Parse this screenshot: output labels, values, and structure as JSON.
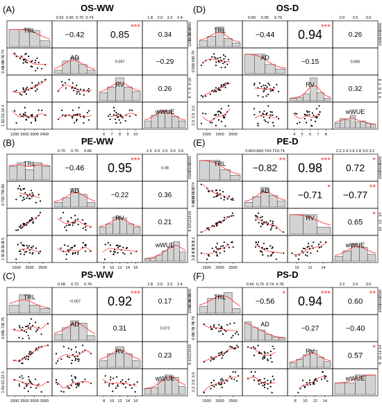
{
  "variables": [
    "TRL",
    "AD",
    "RV",
    "wWUE"
  ],
  "colors": {
    "hist_fill": "#d3d3d3",
    "curve": "#ff3333",
    "point": "#000000",
    "star": "#ff3333",
    "frame": "#000000"
  },
  "chart_data": [
    {
      "type": "pairs",
      "panel_label": "(A)",
      "title": "OS-WW",
      "correlations": [
        {
          "pair": [
            "TRL",
            "AD"
          ],
          "r": "−0.42",
          "stars": ""
        },
        {
          "pair": [
            "TRL",
            "RV"
          ],
          "r": "0.85",
          "stars": "***"
        },
        {
          "pair": [
            "TRL",
            "wWUE"
          ],
          "r": "0.34",
          "stars": ""
        },
        {
          "pair": [
            "AD",
            "RV"
          ],
          "r": "0.097",
          "stars": ""
        },
        {
          "pair": [
            "AD",
            "wWUE"
          ],
          "r": "−0.29",
          "stars": ""
        },
        {
          "pair": [
            "RV",
            "wWUE"
          ],
          "r": "0.26",
          "stars": ""
        }
      ],
      "ticks": {
        "TRL": [
          "1200",
          "1600",
          "2000",
          "2400"
        ],
        "AD": [
          "0.62",
          "0.66",
          "0.70",
          "0.74"
        ],
        "RV": [
          "6",
          "7",
          "8",
          "9",
          "10"
        ],
        "wWUE": [
          "1.8",
          "2.0",
          "2.2",
          "2.4"
        ]
      },
      "ranges": {
        "TRL": [
          1050,
          2450
        ],
        "AD": [
          0.59,
          0.77
        ],
        "RV": [
          5.5,
          10.8
        ],
        "wWUE": [
          1.65,
          2.5
        ]
      },
      "histograms": {
        "TRL": [
          0.75,
          0.75,
          0.7,
          0.25
        ],
        "AD": [
          0.15,
          0.55,
          0.7,
          0.4,
          0.15
        ],
        "RV": [
          0.35,
          0.6,
          1.0,
          0.6,
          0.4
        ],
        "wWUE": [
          0.3,
          0.55,
          0.75,
          0.75,
          0.5,
          0.3
        ]
      }
    },
    {
      "type": "pairs",
      "panel_label": "(D)",
      "title": "OS-D",
      "correlations": [
        {
          "pair": [
            "TRL",
            "AD"
          ],
          "r": "−0.44",
          "stars": ""
        },
        {
          "pair": [
            "TRL",
            "RV"
          ],
          "r": "0.94",
          "stars": "***"
        },
        {
          "pair": [
            "TRL",
            "wWUE"
          ],
          "r": "0.26",
          "stars": ""
        },
        {
          "pair": [
            "AD",
            "RV"
          ],
          "r": "−0.15",
          "stars": ""
        },
        {
          "pair": [
            "AD",
            "wWUE"
          ],
          "r": "0.066",
          "stars": ""
        },
        {
          "pair": [
            "RV",
            "wWUE"
          ],
          "r": "0.32",
          "stars": ""
        }
      ],
      "ticks": {
        "TRL": [
          "1000",
          "1500",
          "2000"
        ],
        "AD": [
          "0.60",
          "0.65",
          "0.70"
        ],
        "RV": [
          "4",
          "5",
          "6",
          "7",
          "8"
        ],
        "wWUE": [
          "2.0",
          "2.5",
          "3.0"
        ]
      },
      "ranges": {
        "TRL": [
          850,
          2300
        ],
        "AD": [
          0.56,
          0.73
        ],
        "RV": [
          4,
          8.3
        ],
        "wWUE": [
          1.75,
          3.2
        ]
      },
      "histograms": {
        "TRL": [
          0.25,
          0.45,
          0.85,
          0.35,
          0.15
        ],
        "AD": [
          0.85,
          0.85,
          0.4,
          0.2
        ],
        "RV": [
          0.1,
          0.15,
          0.3,
          1.0,
          0.35,
          0.1
        ],
        "wWUE": [
          0.2,
          0.4,
          0.35,
          0.55,
          0.25,
          0.3,
          0.2,
          0.15
        ]
      }
    },
    {
      "type": "pairs",
      "panel_label": "(B)",
      "title": "PE-WW",
      "correlations": [
        {
          "pair": [
            "TRL",
            "AD"
          ],
          "r": "−0.46",
          "stars": ""
        },
        {
          "pair": [
            "TRL",
            "RV"
          ],
          "r": "0.95",
          "stars": "***"
        },
        {
          "pair": [
            "TRL",
            "wWUE"
          ],
          "r": "0.08",
          "stars": ""
        },
        {
          "pair": [
            "AD",
            "RV"
          ],
          "r": "−0.22",
          "stars": ""
        },
        {
          "pair": [
            "AD",
            "wWUE"
          ],
          "r": "0.36",
          "stars": ""
        },
        {
          "pair": [
            "RV",
            "wWUE"
          ],
          "r": "0.21",
          "stars": ""
        }
      ],
      "ticks": {
        "TRL": [
          "1500",
          "2500",
          "3500"
        ],
        "AD": [
          "0.70",
          "0.75",
          "0.80"
        ],
        "RV": [
          "8",
          "10",
          "12",
          "14",
          "16"
        ],
        "wWUE": [
          "1.5",
          "2.0",
          "2.5",
          "3.0",
          "3.5"
        ]
      },
      "ranges": {
        "TRL": [
          1100,
          3900
        ],
        "AD": [
          0.66,
          0.84
        ],
        "RV": [
          7,
          17
        ],
        "wWUE": [
          1.4,
          3.6
        ]
      },
      "histograms": {
        "TRL": [
          0.6,
          0.75,
          0.45,
          0.75,
          0.6
        ],
        "AD": [
          0.2,
          0.4,
          0.8,
          0.55,
          0.2
        ],
        "RV": [
          0.3,
          0.45,
          0.75,
          0.7,
          0.45,
          0.3
        ],
        "wWUE": [
          0.1,
          0.15,
          0.25,
          0.45,
          0.6,
          0.85,
          0.4
        ]
      }
    },
    {
      "type": "pairs",
      "panel_label": "(E)",
      "title": "PE-D",
      "correlations": [
        {
          "pair": [
            "TRL",
            "AD"
          ],
          "r": "−0.82",
          "stars": "**"
        },
        {
          "pair": [
            "TRL",
            "RV"
          ],
          "r": "0.98",
          "stars": "***"
        },
        {
          "pair": [
            "TRL",
            "wWUE"
          ],
          "r": "0.72",
          "stars": "*"
        },
        {
          "pair": [
            "AD",
            "RV"
          ],
          "r": "−0.71",
          "stars": "*"
        },
        {
          "pair": [
            "AD",
            "wWUE"
          ],
          "r": "−0.77",
          "stars": "**"
        },
        {
          "pair": [
            "RV",
            "wWUE"
          ],
          "r": "0.65",
          "stars": "*"
        }
      ],
      "ticks": {
        "TRL": [
          "1500",
          "2500",
          "3500"
        ],
        "AD": [
          "0.66",
          "0.68",
          "0.70",
          "0.72",
          "0.74"
        ],
        "RV": [
          "10",
          "12",
          "14"
        ],
        "wWUE": [
          "2.2",
          "2.4",
          "2.6",
          "2.8",
          "3.0",
          "3.2"
        ]
      },
      "ranges": {
        "TRL": [
          1100,
          4100
        ],
        "AD": [
          0.645,
          0.755
        ],
        "RV": [
          8.5,
          15.5
        ],
        "wWUE": [
          2.05,
          3.25
        ]
      },
      "histograms": {
        "TRL": [
          0.85,
          0.85,
          0.45,
          0.2
        ],
        "AD": [
          0.2,
          0.45,
          0.85,
          0.5,
          0.25
        ],
        "RV": [
          0.85,
          0.85,
          0.3
        ],
        "wWUE": [
          0.2,
          0.45,
          0.75,
          0.6,
          0.3
        ]
      }
    },
    {
      "type": "pairs",
      "panel_label": "(C)",
      "title": "PS-WW",
      "correlations": [
        {
          "pair": [
            "TRL",
            "AD"
          ],
          "r": "−0.007",
          "stars": ""
        },
        {
          "pair": [
            "TRL",
            "RV"
          ],
          "r": "0.92",
          "stars": "***"
        },
        {
          "pair": [
            "TRL",
            "wWUE"
          ],
          "r": "0.17",
          "stars": ""
        },
        {
          "pair": [
            "AD",
            "RV"
          ],
          "r": "0.31",
          "stars": ""
        },
        {
          "pair": [
            "AD",
            "wWUE"
          ],
          "r": "0.072",
          "stars": ""
        },
        {
          "pair": [
            "RV",
            "wWUE"
          ],
          "r": "0.23",
          "stars": ""
        }
      ],
      "ticks": {
        "TRL": [
          "2000",
          "2500",
          "3000",
          "3500"
        ],
        "AD": [
          "0.68",
          "0.72",
          "0.76"
        ],
        "RV": [
          "8",
          "10",
          "12",
          "14",
          "16"
        ],
        "wWUE": [
          "1.8",
          "2.0",
          "2.2",
          "2.4"
        ]
      },
      "ranges": {
        "TRL": [
          1500,
          3800
        ],
        "AD": [
          0.65,
          0.79
        ],
        "RV": [
          7.5,
          17
        ],
        "wWUE": [
          1.7,
          2.5
        ]
      },
      "histograms": {
        "TRL": [
          0.35,
          0.8,
          0.35,
          0.2
        ],
        "AD": [
          0.25,
          0.55,
          0.85,
          0.75,
          0.2
        ],
        "RV": [
          0.3,
          0.6,
          0.9,
          0.6,
          0.3
        ],
        "wWUE": [
          0.25,
          0.3,
          0.6,
          0.85,
          0.75,
          0.35
        ]
      }
    },
    {
      "type": "pairs",
      "panel_label": "(F)",
      "title": "PS-D",
      "correlations": [
        {
          "pair": [
            "TRL",
            "AD"
          ],
          "r": "−0.56",
          "stars": "*"
        },
        {
          "pair": [
            "TRL",
            "RV"
          ],
          "r": "0.94",
          "stars": "***"
        },
        {
          "pair": [
            "TRL",
            "wWUE"
          ],
          "r": "0.60",
          "stars": "**"
        },
        {
          "pair": [
            "AD",
            "RV"
          ],
          "r": "−0.27",
          "stars": ""
        },
        {
          "pair": [
            "AD",
            "wWUE"
          ],
          "r": "−0.40",
          "stars": ""
        },
        {
          "pair": [
            "RV",
            "wWUE"
          ],
          "r": "0.57",
          "stars": "*"
        }
      ],
      "ticks": {
        "TRL": [
          "1500",
          "2000",
          "2500"
        ],
        "AD": [
          "0.66",
          "0.70",
          "0.74",
          "0.78"
        ],
        "RV": [
          "8",
          "10",
          "12",
          "14"
        ],
        "wWUE": [
          "2.2",
          "2.6",
          "3.0"
        ]
      },
      "ranges": {
        "TRL": [
          1100,
          2800
        ],
        "AD": [
          0.64,
          0.8
        ],
        "RV": [
          7,
          14.5
        ],
        "wWUE": [
          1.7,
          3.05
        ]
      },
      "histograms": {
        "TRL": [
          0.3,
          0.65,
          0.75,
          0.9,
          0.2
        ],
        "AD": [
          0.8,
          0.55,
          0.45,
          0.25,
          0.15,
          0.1
        ],
        "RV": [
          0.2,
          0.35,
          0.55,
          0.75,
          0.45,
          0.25
        ],
        "wWUE": [
          0.5,
          0.5,
          0.85,
          0.85
        ]
      }
    }
  ]
}
